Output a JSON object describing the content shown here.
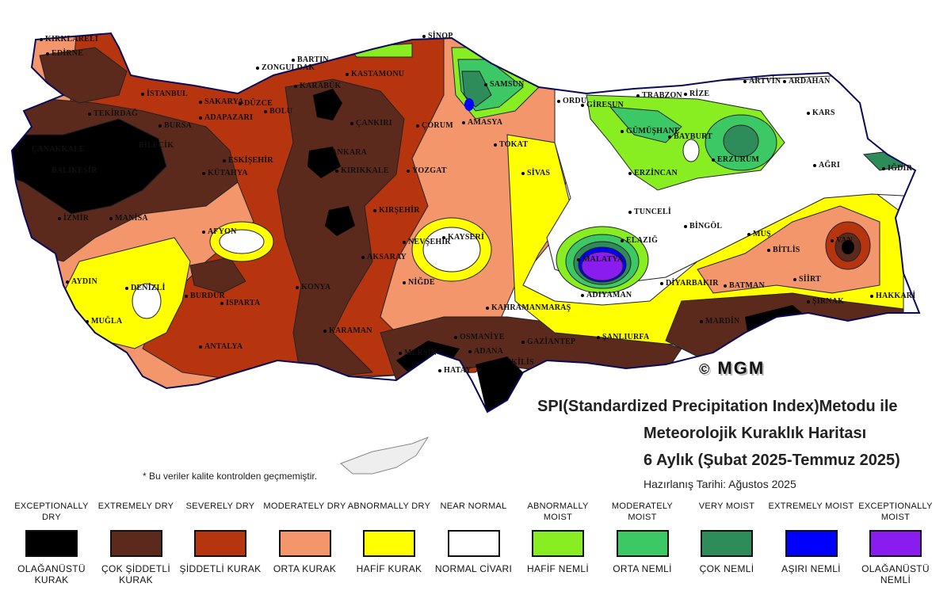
{
  "map": {
    "colors": {
      "exceptionally_dry": "#000000",
      "extremely_dry": "#5c2a1c",
      "severely_dry": "#b7350e",
      "moderately_dry": "#f4966c",
      "abnormally_dry": "#ffff00",
      "near_normal": "#ffffff",
      "abnormally_moist": "#88ee22",
      "moderately_moist": "#3cc864",
      "very_moist": "#2e8c5a",
      "extremely_moist": "#0000ff",
      "exceptionally_moist": "#8a1cf0"
    },
    "cities": [
      "KIRKLARELİ",
      "EDİRNE",
      "İSTANBUL",
      "TEKİRDAĞ",
      "ÇANAKKALE",
      "BALIKESİR",
      "BURSA",
      "İZMİR",
      "MANİSA",
      "AYDIN",
      "MUĞLA",
      "DENİZLİ",
      "AFYON",
      "KÜTAHYA",
      "BURDUR",
      "ISPARTA",
      "ANTALYA",
      "KONYA",
      "KARAMAN",
      "MERSİN",
      "ADANA",
      "OSMANİYE",
      "HATAY",
      "KİLİS",
      "GAZİANTEP",
      "ŞANLIURFA",
      "KAHRAMANMARAŞ",
      "ADIYAMAN",
      "MALATYA",
      "ELAZIĞ",
      "TUNCELİ",
      "BİNGÖL",
      "MUŞ",
      "BİTLİS",
      "VAN",
      "HAKKARİ",
      "ŞIRNAK",
      "SİİRT",
      "BATMAN",
      "DİYARBAKIR",
      "MARDİN",
      "SİVAS",
      "TOKAT",
      "AMASYA",
      "SAMSUN",
      "SİNOP",
      "ORDU",
      "GİRESUN",
      "TRABZON",
      "RİZE",
      "ARTVİN",
      "ARDAHAN",
      "KARS",
      "IĞDIR",
      "AĞRI",
      "ERZURUM",
      "BAYBURT",
      "GÜMÜŞHANE",
      "ERZİNCAN",
      "YOZGAT",
      "KAYSERİ",
      "NEVŞEHİR",
      "NİĞDE",
      "AKSARAY",
      "KIRŞEHİR",
      "KIRIKKALE",
      "ANKARA",
      "ÇANKIRI",
      "ÇORUM",
      "KASTAMONU",
      "KARABÜK",
      "BARTIN",
      "ZONGULDAK",
      "BOLU",
      "DÜZCE",
      "SAKARYA",
      "ADAPAZARI",
      "ESKİŞEHİR",
      "BİLECİK"
    ]
  },
  "copyright": "MGM",
  "title": {
    "line1": "SPI(Standardized Precipitation Index)Metodu ile",
    "line2": "Meteorolojik Kuraklık Haritası",
    "line3": "6 Aylık (Şubat 2025-Temmuz 2025)"
  },
  "prepared_date": "Hazırlanış Tarihi: Ağustos 2025",
  "note": "* Bu veriler kalite kontrolden geçmemiştir.",
  "legend": [
    {
      "en": "EXCEPTIONALLY DRY",
      "tr": "OLAĞANÜSTÜ KURAK",
      "color": "#000000"
    },
    {
      "en": "EXTREMELY DRY",
      "tr": "ÇOK ŞİDDETLİ KURAK",
      "color": "#5c2a1c"
    },
    {
      "en": "SEVERELY DRY",
      "tr": "ŞİDDETLİ KURAK",
      "color": "#b7350e"
    },
    {
      "en": "MODERATELY DRY",
      "tr": "ORTA KURAK",
      "color": "#f4966c"
    },
    {
      "en": "ABNORMALLY DRY",
      "tr": "HAFİF KURAK",
      "color": "#ffff00"
    },
    {
      "en": "NEAR NORMAL",
      "tr": "NORMAL CİVARI",
      "color": "#ffffff"
    },
    {
      "en": "ABNORMALLY MOIST",
      "tr": "HAFİF NEMLİ",
      "color": "#88ee22"
    },
    {
      "en": "MODERATELY MOIST",
      "tr": "ORTA NEMLİ",
      "color": "#3cc864"
    },
    {
      "en": "VERY MOIST",
      "tr": "ÇOK NEMLİ",
      "color": "#2e8c5a"
    },
    {
      "en": "EXTREMELY MOIST",
      "tr": "AŞIRI NEMLİ",
      "color": "#0000ff"
    },
    {
      "en": "EXCEPTIONALLY MOIST",
      "tr": "OLAĞANÜSTÜ NEMLİ",
      "color": "#8a1cf0"
    }
  ]
}
